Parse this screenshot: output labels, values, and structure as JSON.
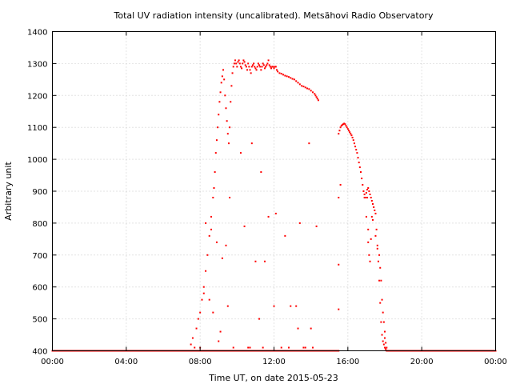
{
  "chart_data": {
    "type": "scatter",
    "title": "Total UV radiation intensity (uncalibrated). Metsähovi Radio Observatory",
    "xlabel": "Time UT, on date 2015-05-23",
    "ylabel": "Arbitrary unit",
    "xlim": [
      0,
      24
    ],
    "ylim": [
      400,
      1400
    ],
    "xticks": [
      0,
      4,
      8,
      12,
      16,
      20,
      24
    ],
    "xtick_labels": [
      "00:00",
      "04:00",
      "08:00",
      "12:00",
      "16:00",
      "20:00",
      "00:00"
    ],
    "yticks": [
      400,
      500,
      600,
      700,
      800,
      900,
      1000,
      1100,
      1200,
      1300,
      1400
    ],
    "ytick_labels": [
      "400",
      "500",
      "600",
      "700",
      "800",
      "900",
      "1000",
      "1100",
      "1200",
      "1300",
      "1400"
    ],
    "grid": true,
    "marker_color": "#ff0000",
    "series": [
      {
        "baseline_value": 400,
        "baseline_ranges": [
          [
            0,
            15.5
          ],
          [
            18.3,
            24
          ]
        ],
        "x": [
          7.5,
          7.6,
          7.7,
          7.8,
          7.9,
          8.0,
          8.0,
          8.1,
          8.2,
          8.3,
          8.4,
          8.5,
          8.6,
          8.7,
          8.75,
          8.8,
          8.85,
          8.9,
          8.95,
          9.0,
          9.05,
          9.1,
          9.15,
          9.2,
          9.25,
          9.3,
          9.35,
          9.4,
          9.45,
          9.5,
          9.55,
          9.6,
          9.65,
          9.7,
          9.75,
          9.8,
          9.85,
          9.9,
          9.95,
          10.0,
          10.05,
          10.1,
          10.15,
          10.2,
          10.25,
          10.3,
          10.35,
          10.4,
          10.45,
          10.5,
          10.55,
          10.6,
          10.65,
          10.7,
          10.75,
          10.8,
          10.85,
          10.9,
          10.95,
          11.0,
          11.05,
          11.1,
          11.15,
          11.2,
          11.25,
          11.3,
          11.35,
          11.4,
          11.45,
          11.5,
          11.55,
          11.6,
          11.65,
          11.7,
          11.75,
          11.8,
          11.85,
          11.9,
          11.95,
          12.0,
          12.05,
          12.1,
          12.15,
          12.2,
          12.3,
          12.4,
          12.5,
          12.6,
          12.7,
          12.8,
          12.9,
          13.0,
          13.1,
          13.2,
          13.3,
          13.4,
          13.5,
          13.6,
          13.7,
          13.8,
          13.9,
          14.0,
          14.1,
          14.2,
          14.25,
          14.3,
          14.35,
          14.4,
          8.3,
          8.6,
          8.9,
          9.2,
          9.6,
          10.2,
          10.8,
          11.3,
          11.7,
          12.1,
          12.6,
          13.4,
          13.9,
          14.3,
          9.4,
          10.4,
          11.0,
          11.5,
          12.0,
          12.9,
          13.3,
          14.0,
          8.2,
          8.5,
          8.7,
          9.1,
          9.5,
          9.9,
          10.6,
          11.2,
          11.8,
          12.2,
          12.8,
          13.2,
          13.7,
          14.1,
          9.0,
          9.8,
          10.7,
          11.4,
          12.4,
          13.6,
          15.5,
          15.55,
          15.6,
          15.65,
          15.7,
          15.75,
          15.8,
          15.85,
          15.9,
          15.95,
          16.0,
          16.05,
          16.1,
          16.15,
          16.2,
          16.25,
          16.3,
          16.35,
          16.4,
          16.45,
          16.5,
          16.55,
          16.6,
          16.65,
          16.7,
          16.75,
          16.8,
          16.85,
          16.9,
          16.95,
          17.0,
          17.05,
          17.1,
          17.15,
          17.2,
          17.25,
          17.3,
          17.35,
          17.4,
          17.45,
          17.5,
          17.55,
          17.6,
          17.65,
          17.7,
          17.75,
          17.8,
          17.85,
          17.9,
          17.95,
          18.0,
          18.05,
          18.1,
          18.15,
          18.2,
          18.25,
          15.5,
          15.5,
          15.5,
          15.6,
          16.9,
          17.0,
          17.1,
          17.2,
          17.05,
          17.15,
          17.25,
          17.35,
          17.1,
          17.3,
          17.5,
          17.6,
          17.7,
          17.75,
          17.8,
          17.85,
          17.9,
          17.95,
          18.0,
          18.0,
          18.05,
          18.1
        ],
        "y": [
          420,
          440,
          410,
          470,
          500,
          520,
          410,
          560,
          600,
          650,
          700,
          760,
          820,
          880,
          910,
          960,
          1020,
          1060,
          1100,
          1140,
          1180,
          1210,
          1240,
          1260,
          1280,
          1250,
          1200,
          1160,
          1120,
          1080,
          1050,
          1100,
          1180,
          1230,
          1270,
          1290,
          1300,
          1310,
          1300,
          1290,
          1305,
          1310,
          1300,
          1290,
          1285,
          1300,
          1310,
          1305,
          1295,
          1290,
          1280,
          1300,
          1290,
          1280,
          1270,
          1290,
          1295,
          1300,
          1290,
          1285,
          1280,
          1290,
          1300,
          1295,
          1290,
          1280,
          1290,
          1300,
          1295,
          1285,
          1290,
          1295,
          1300,
          1310,
          1295,
          1290,
          1285,
          1290,
          1290,
          1285,
          1290,
          1290,
          1280,
          1275,
          1270,
          1268,
          1265,
          1262,
          1260,
          1258,
          1255,
          1252,
          1250,
          1245,
          1240,
          1235,
          1230,
          1228,
          1225,
          1222,
          1220,
          1215,
          1210,
          1205,
          1200,
          1195,
          1190,
          1185,
          800,
          780,
          740,
          690,
          880,
          1020,
          1050,
          960,
          820,
          830,
          760,
          800,
          1050,
          790,
          730,
          790,
          680,
          680,
          540,
          540,
          470,
          470,
          580,
          560,
          520,
          460,
          540,
          400,
          410,
          500,
          400,
          400,
          410,
          540,
          410,
          410,
          430,
          410,
          410,
          410,
          410,
          410,
          1080,
          1090,
          1100,
          1105,
          1108,
          1110,
          1112,
          1110,
          1105,
          1100,
          1095,
          1090,
          1085,
          1080,
          1075,
          1068,
          1060,
          1050,
          1040,
          1030,
          1020,
          1005,
          990,
          975,
          960,
          940,
          920,
          900,
          890,
          880,
          895,
          905,
          910,
          900,
          890,
          880,
          870,
          860,
          850,
          840,
          830,
          780,
          730,
          680,
          620,
          550,
          490,
          450,
          430,
          420,
          410,
          405,
          400,
          400,
          400,
          400,
          670,
          530,
          880,
          920,
          880,
          820,
          740,
          680,
          880,
          700,
          750,
          810,
          780,
          820,
          760,
          720,
          700,
          660,
          620,
          560,
          520,
          490,
          460,
          440,
          425,
          410
        ]
      }
    ]
  }
}
